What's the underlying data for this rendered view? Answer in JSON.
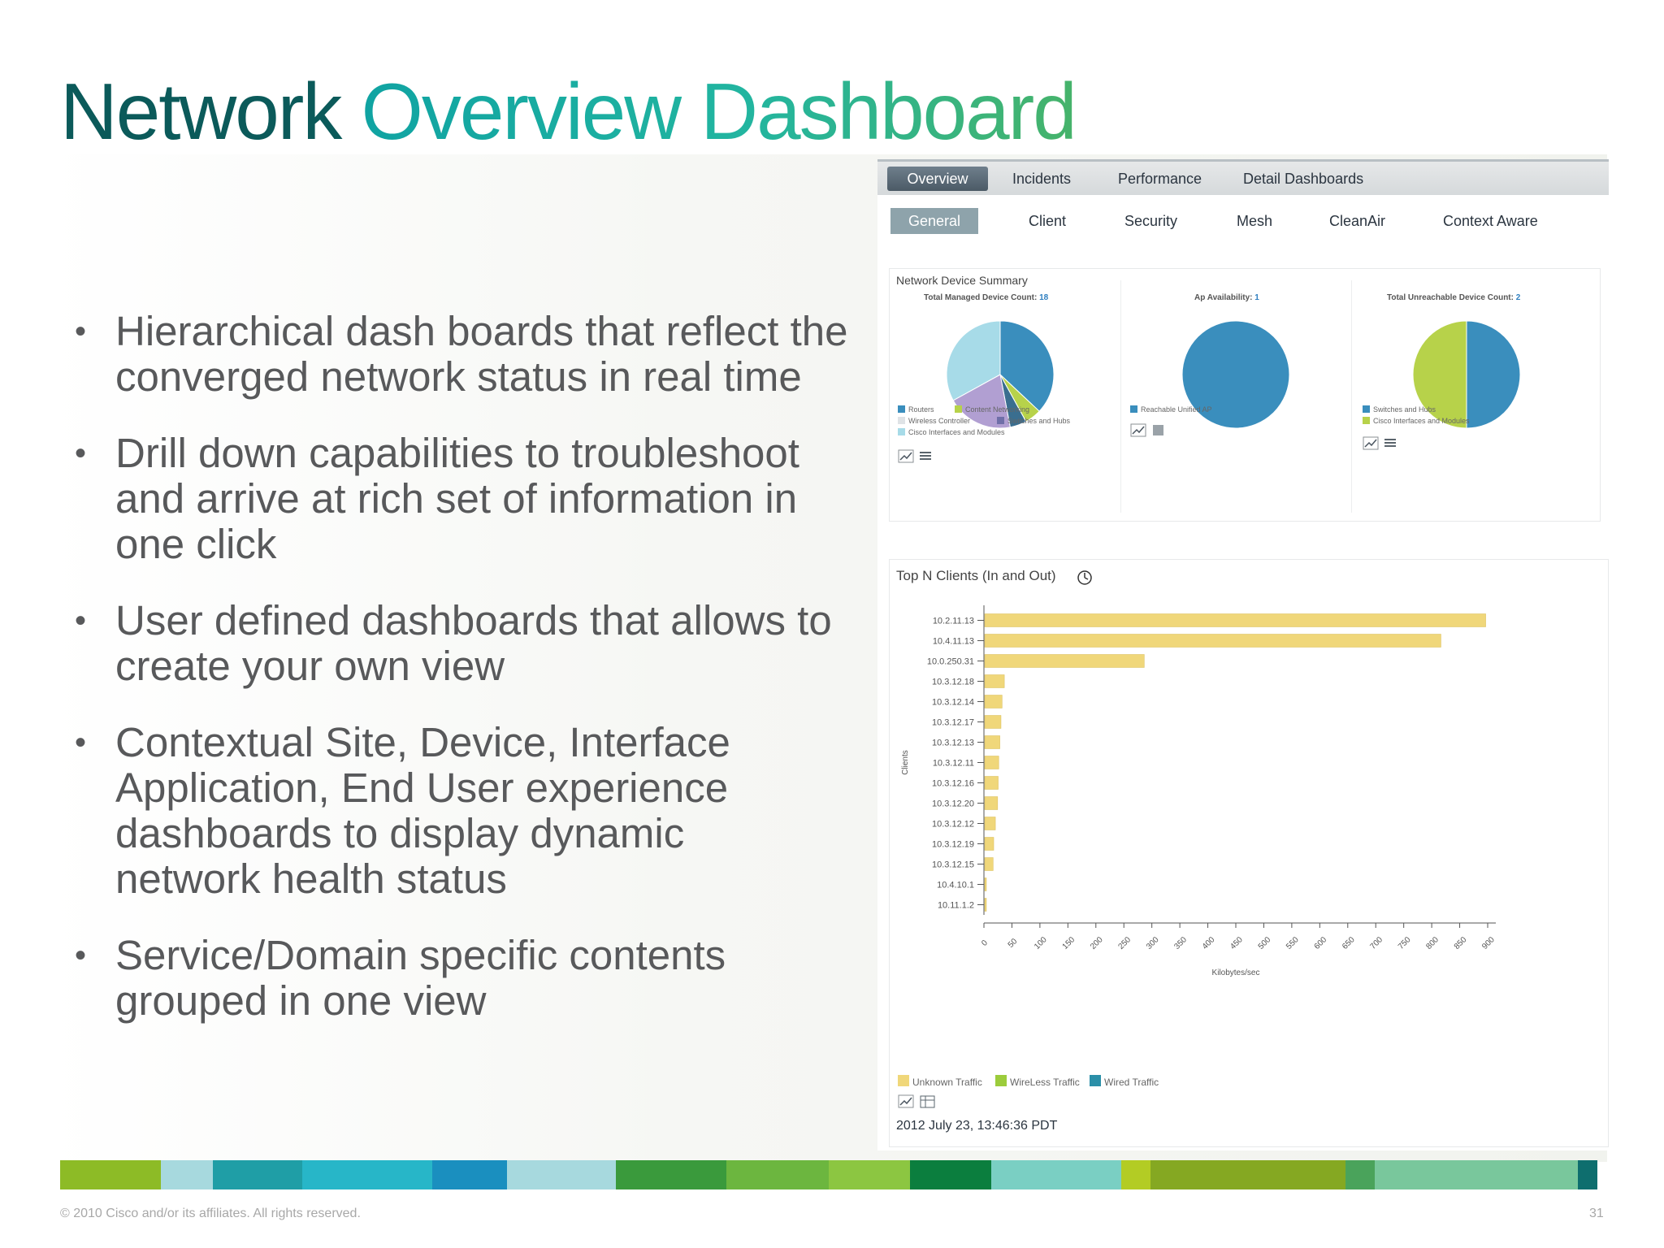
{
  "slide": {
    "title_dark": "Network",
    "title_grad": " Overview Dashboard",
    "bullets": [
      "Hierarchical dash boards that reflect the converged network status in real time",
      "Drill down capabilities to troubleshoot and arrive at rich set of information in one click",
      "User defined dashboards that allows to create your own view",
      "Contextual Site, Device, Interface Application, End User experience dashboards to display dynamic network health status",
      "Service/Domain specific contents grouped in one view"
    ],
    "bullet_symbol": "•",
    "footer": "© 2010 Cisco and/or its affiliates. All rights reserved.",
    "page_number": "31",
    "stripe_colors": [
      "#8dbb26",
      "#a7d9de",
      "#1f9ea6",
      "#27b6c8",
      "#1a8fbf",
      "#a7d9de",
      "#3a9a3c",
      "#6cb63f",
      "#8cc641",
      "#0b7e3e",
      "#7acfc3",
      "#b3cc24",
      "#85a822",
      "#4aa35b",
      "#79c79c",
      "#0e6e6e"
    ]
  },
  "dashboard": {
    "top_tabs": [
      "Overview",
      "Incidents",
      "Performance",
      "Detail Dashboards"
    ],
    "active_top_tab": "Overview",
    "sub_tabs": [
      "General",
      "Client",
      "Security",
      "Mesh",
      "CleanAir",
      "Context Aware"
    ],
    "active_sub_tab": "General",
    "device_summary": {
      "title": "Network Device Summary",
      "pies": [
        {
          "label": "Total Managed Device Count:",
          "value": "18",
          "slices": [
            {
              "name": "Routers",
              "fraction": 0.37,
              "color": "#3a8ebd"
            },
            {
              "name": "Content Networking",
              "fraction": 0.05,
              "color": "#b7d24a"
            },
            {
              "name": "Switches and Hubs",
              "fraction": 0.05,
              "color": "#3a6e8f"
            },
            {
              "name": "Wireless Controller",
              "fraction": 0.2,
              "color": "#b19fd2"
            },
            {
              "name": "Cisco Interfaces and Modules",
              "fraction": 0.33,
              "color": "#a7dbe8"
            }
          ],
          "legend": [
            "Routers",
            "Content Networking",
            "Wireless Controller",
            "Switches and Hubs",
            "Cisco Interfaces and Modules"
          ]
        },
        {
          "label": "Ap Availability:",
          "value": "1",
          "slices": [
            {
              "name": "Reachable Unified AP",
              "fraction": 1.0,
              "color": "#3a8ebd"
            }
          ],
          "legend": [
            "Reachable Unified AP"
          ]
        },
        {
          "label": "Total Unreachable Device Count:",
          "value": "2",
          "slices": [
            {
              "name": "Switches and Hubs",
              "fraction": 0.5,
              "color": "#3a8ebd"
            },
            {
              "name": "Cisco Interfaces and Modules",
              "fraction": 0.5,
              "color": "#b7d24a"
            }
          ],
          "legend": [
            "Switches and Hubs",
            "Cisco Interfaces and Modules"
          ]
        }
      ]
    },
    "top_clients": {
      "title": "Top N Clients (In and Out)",
      "timestamp": "2012 July 23, 13:46:36 PDT",
      "legend": [
        "Unknown Traffic",
        "WireLess Traffic",
        "Wired Traffic"
      ],
      "legend_colors": [
        "#f0d77a",
        "#9ccc3c",
        "#2b8fa8"
      ]
    }
  },
  "chart_data": {
    "type": "bar",
    "title": "Top N Clients (In and Out)",
    "xlabel": "Kilobytes/sec",
    "ylabel": "Clients",
    "xlim": [
      0,
      900
    ],
    "xticks": [
      0,
      50,
      100,
      150,
      200,
      250,
      300,
      350,
      400,
      450,
      500,
      550,
      600,
      650,
      700,
      750,
      800,
      850,
      900
    ],
    "categories": [
      "10.2.11.13",
      "10.4.11.13",
      "10.0.250.31",
      "10.3.12.18",
      "10.3.12.14",
      "10.3.12.17",
      "10.3.12.13",
      "10.3.12.11",
      "10.3.12.16",
      "10.3.12.20",
      "10.3.12.12",
      "10.3.12.19",
      "10.3.12.15",
      "10.4.10.1",
      "10.11.1.2"
    ],
    "series": [
      {
        "name": "Unknown Traffic",
        "color": "#f0d77a",
        "values": [
          895,
          815,
          285,
          35,
          31,
          29,
          27,
          25,
          24,
          23,
          19,
          16,
          15,
          1,
          1
        ]
      }
    ]
  }
}
